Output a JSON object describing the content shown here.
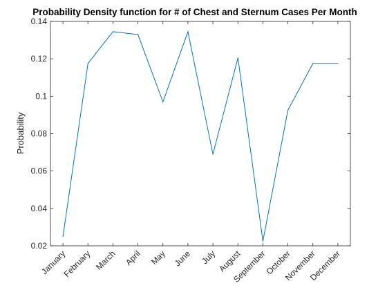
{
  "chart_data": {
    "type": "line",
    "title": "Probability Density function for # of Chest and Sternum Cases Per Month",
    "xlabel": "",
    "ylabel": "Probability",
    "categories": [
      "January",
      "February",
      "March",
      "April",
      "May",
      "June",
      "July",
      "August",
      "September",
      "October",
      "November",
      "December"
    ],
    "series": [
      {
        "values": [
          0.025,
          0.1175,
          0.1345,
          0.133,
          0.097,
          0.1345,
          0.069,
          0.1205,
          0.0225,
          0.0925,
          0.1175,
          0.1175
        ],
        "color": "#0072BD"
      }
    ],
    "ylim": [
      0.02,
      0.14
    ],
    "yticks": [
      "0.02",
      "0.04",
      "0.06",
      "0.08",
      "0.1",
      "0.12",
      "0.14"
    ],
    "grid": false,
    "legend": "none"
  }
}
